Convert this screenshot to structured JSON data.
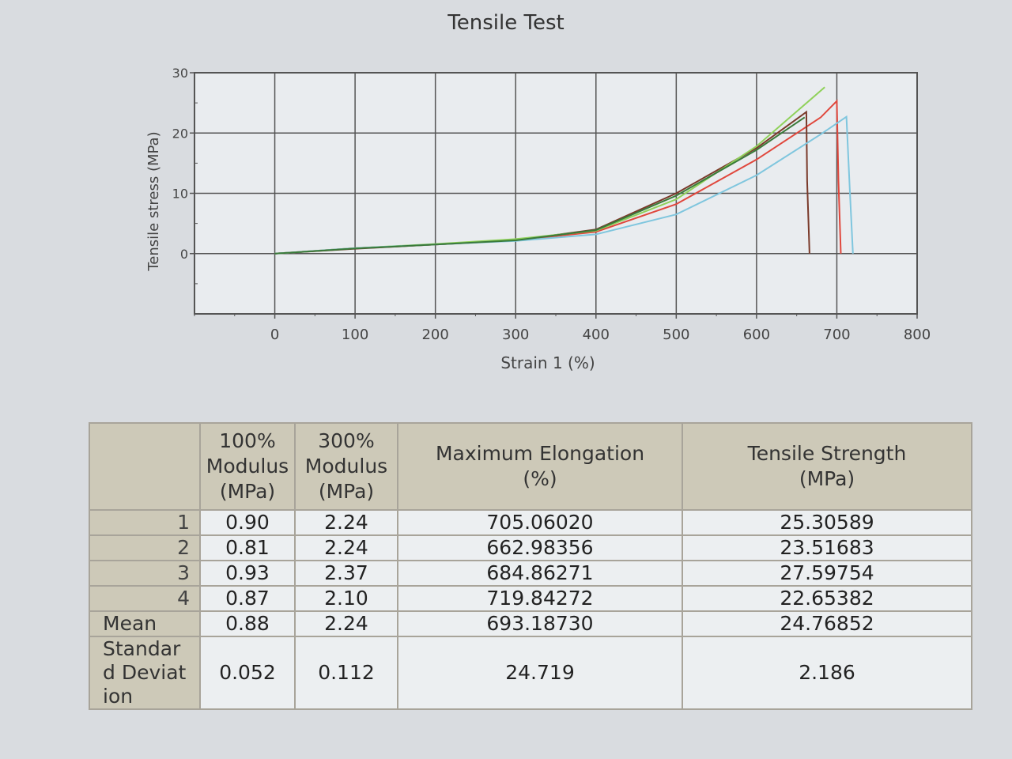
{
  "chart_data": {
    "type": "line",
    "title": "Tensile Test",
    "xlabel": "Strain 1 (%)",
    "ylabel": "Tensile stress (MPa)",
    "xlim": [
      -100,
      800
    ],
    "ylim": [
      -10,
      30
    ],
    "xticks": [
      0,
      100,
      200,
      300,
      400,
      500,
      600,
      700,
      800
    ],
    "yticks": [
      0,
      10,
      20,
      30
    ],
    "grid": true,
    "series": [
      {
        "color": "#e0473c",
        "points": [
          [
            0,
            0
          ],
          [
            100,
            0.9
          ],
          [
            200,
            1.5
          ],
          [
            300,
            2.2
          ],
          [
            400,
            3.6
          ],
          [
            500,
            8.2
          ],
          [
            600,
            15.6
          ],
          [
            680,
            22.6
          ],
          [
            700,
            25.3
          ],
          [
            702,
            12
          ],
          [
            705,
            0
          ]
        ]
      },
      {
        "color": "#7a3a2a",
        "points": [
          [
            0,
            0
          ],
          [
            100,
            0.8
          ],
          [
            200,
            1.5
          ],
          [
            300,
            2.2
          ],
          [
            400,
            4.0
          ],
          [
            500,
            10.0
          ],
          [
            600,
            17.5
          ],
          [
            662,
            23.5
          ],
          [
            663,
            12
          ],
          [
            666,
            0
          ]
        ]
      },
      {
        "color": "#8fd15a",
        "points": [
          [
            0,
            0
          ],
          [
            100,
            0.9
          ],
          [
            200,
            1.6
          ],
          [
            300,
            2.4
          ],
          [
            400,
            3.8
          ],
          [
            500,
            9.0
          ],
          [
            600,
            17.8
          ],
          [
            685,
            27.6
          ]
        ]
      },
      {
        "color": "#7fc6de",
        "points": [
          [
            0,
            0
          ],
          [
            100,
            0.9
          ],
          [
            200,
            1.5
          ],
          [
            300,
            2.1
          ],
          [
            400,
            3.2
          ],
          [
            500,
            6.5
          ],
          [
            600,
            13.0
          ],
          [
            680,
            19.8
          ],
          [
            712,
            22.7
          ],
          [
            716,
            11
          ],
          [
            720,
            0
          ]
        ]
      },
      {
        "color": "#3a7a3a",
        "points": [
          [
            0,
            0
          ],
          [
            100,
            0.85
          ],
          [
            200,
            1.5
          ],
          [
            300,
            2.2
          ],
          [
            400,
            3.9
          ],
          [
            500,
            9.6
          ],
          [
            600,
            17.2
          ],
          [
            660,
            22.6
          ]
        ]
      }
    ]
  },
  "table": {
    "headers": [
      [
        "",
        ""
      ],
      [
        "100%",
        "Modulus",
        "(MPa)"
      ],
      [
        "300%",
        "Modulus",
        "(MPa)"
      ],
      [
        "Maximum Elongation",
        "(%)"
      ],
      [
        "Tensile Strength",
        "(MPa)"
      ]
    ],
    "rows": [
      {
        "label": "1",
        "values": [
          "0.90",
          "2.24",
          "705.06020",
          "25.30589"
        ]
      },
      {
        "label": "2",
        "values": [
          "0.81",
          "2.24",
          "662.98356",
          "23.51683"
        ]
      },
      {
        "label": "3",
        "values": [
          "0.93",
          "2.37",
          "684.86271",
          "27.59754"
        ]
      },
      {
        "label": "4",
        "values": [
          "0.87",
          "2.10",
          "719.84272",
          "22.65382"
        ]
      },
      {
        "label": "Mean",
        "values": [
          "0.88",
          "2.24",
          "693.18730",
          "24.76852"
        ]
      },
      {
        "label": "Standard Deviation",
        "values": [
          "0.052",
          "0.112",
          "24.719",
          "2.186"
        ]
      }
    ]
  }
}
